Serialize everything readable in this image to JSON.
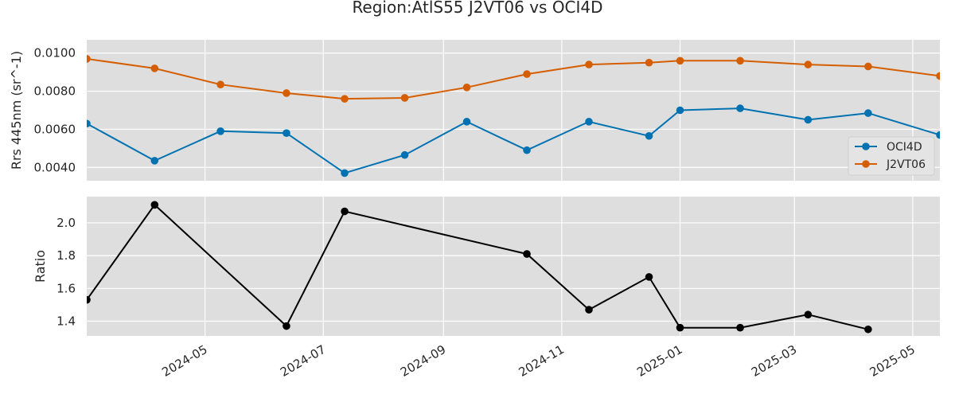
{
  "chart_data": {
    "type": "line",
    "title": "Region:AtlS55 J2VT06 vs OCI4D",
    "style": {
      "background": "#dedede",
      "grid": true,
      "grid_color": "#ffffff"
    },
    "x_ticks": [
      "2024-05",
      "2024-07",
      "2024-09",
      "2024-11",
      "2025-01",
      "2025-03",
      "2025-05"
    ],
    "x_range": [
      "2024-03-01",
      "2025-05-15"
    ],
    "panels": [
      {
        "id": "rrs",
        "ylabel": "Rrs 445nm (sr^-1)",
        "ylim": [
          0.0033,
          0.0107
        ],
        "y_ticks": [
          "0.0040",
          "0.0060",
          "0.0080",
          "0.0100"
        ],
        "y_tick_values": [
          0.004,
          0.006,
          0.008,
          0.01
        ],
        "legend": "center-right",
        "series": [
          {
            "name": "OCI4D",
            "color": "#0072b2",
            "x": [
              "2024-03-01",
              "2024-04-05",
              "2024-05-09",
              "2024-06-12",
              "2024-07-12",
              "2024-08-12",
              "2024-09-13",
              "2024-10-14",
              "2024-11-15",
              "2024-12-16",
              "2025-01-01",
              "2025-02-01",
              "2025-03-08",
              "2025-04-08",
              "2025-05-15"
            ],
            "y": [
              0.0063,
              0.00435,
              0.0059,
              0.0058,
              0.0037,
              0.00465,
              0.0064,
              0.0049,
              0.0064,
              0.00565,
              0.007,
              0.0071,
              0.0065,
              0.00685,
              0.0057
            ]
          },
          {
            "name": "J2VT06",
            "color": "#d55e00",
            "x": [
              "2024-03-01",
              "2024-04-05",
              "2024-05-09",
              "2024-06-12",
              "2024-07-12",
              "2024-08-12",
              "2024-09-13",
              "2024-10-14",
              "2024-11-15",
              "2024-12-16",
              "2025-01-01",
              "2025-02-01",
              "2025-03-08",
              "2025-04-08",
              "2025-05-15"
            ],
            "y": [
              0.0097,
              0.0092,
              0.00835,
              0.0079,
              0.0076,
              0.00765,
              0.0082,
              0.0089,
              0.0094,
              0.0095,
              0.0096,
              0.0096,
              0.0094,
              0.0093,
              0.0088
            ]
          }
        ]
      },
      {
        "id": "ratio",
        "ylabel": "Ratio",
        "ylim": [
          1.31,
          2.16
        ],
        "y_ticks": [
          "1.4",
          "1.6",
          "1.8",
          "2.0"
        ],
        "y_tick_values": [
          1.4,
          1.6,
          1.8,
          2.0
        ],
        "series": [
          {
            "color": "#000000",
            "x": [
              "2024-03-01",
              "2024-04-05",
              "2024-06-12",
              "2024-07-12",
              "2024-10-14",
              "2024-11-15",
              "2024-12-16",
              "2025-01-01",
              "2025-02-01",
              "2025-03-08",
              "2025-04-08"
            ],
            "y": [
              1.53,
              2.11,
              1.37,
              2.07,
              1.81,
              1.47,
              1.67,
              1.36,
              1.36,
              1.44,
              1.35
            ]
          }
        ]
      }
    ]
  }
}
